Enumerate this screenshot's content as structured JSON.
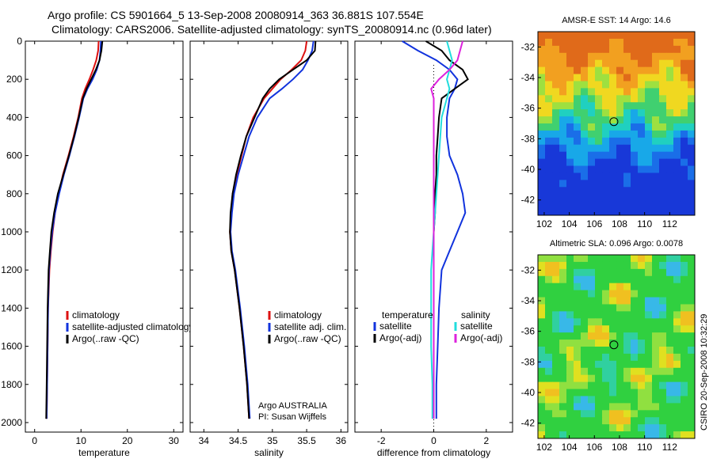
{
  "title_line1": "Argo profile: CS 5901664_5 13-Sep-2008 20080914_363 36.881S 107.554E",
  "title_line2": "Climatology: CARS2006. Satellite-adjusted climatology: synTS_20080914.nc (0.96d later)",
  "footer_vertical": "CSIRO 20-Sep-2008 10:32:29",
  "colors": {
    "climatology": "#dd1111",
    "satellite": "#1133dd",
    "argo": "#000000",
    "cyan": "#22dddd",
    "magenta": "#dd22dd"
  },
  "chart_data": [
    {
      "type": "line",
      "xlabel": "temperature",
      "xlim": [
        -2,
        32
      ],
      "ylim": [
        0,
        2050
      ],
      "xticks": [
        "0",
        "10",
        "20",
        "30"
      ],
      "yticks": [
        "0",
        "200",
        "400",
        "600",
        "800",
        "1000",
        "1200",
        "1400",
        "1600",
        "1800",
        "2000"
      ],
      "legend": [
        "climatology",
        "satellite-adjusted climatology",
        "Argo(..raw -QC)"
      ],
      "series": [
        {
          "name": "climatology",
          "color": "red",
          "x": [
            13.8,
            13.7,
            13.3,
            12.6,
            11.8,
            10.9,
            10.2,
            9.4,
            8.4,
            7.3,
            6.1,
            5.2,
            4.4,
            3.9,
            3.5,
            3.2,
            2.9,
            2.8,
            2.7,
            2.6
          ],
          "y": [
            0,
            50,
            100,
            150,
            200,
            250,
            300,
            400,
            500,
            600,
            700,
            800,
            900,
            1000,
            1100,
            1200,
            1400,
            1600,
            1800,
            1980
          ]
        },
        {
          "name": "satellite-adjusted climatology",
          "color": "blue",
          "x": [
            14.3,
            14.2,
            14.0,
            13.4,
            12.5,
            11.4,
            10.5,
            9.6,
            8.6,
            7.5,
            6.3,
            5.3,
            4.4,
            3.8,
            3.4,
            3.1,
            2.9,
            2.8,
            2.7,
            2.6
          ],
          "y": [
            0,
            50,
            100,
            150,
            200,
            250,
            300,
            400,
            500,
            600,
            700,
            800,
            900,
            1000,
            1100,
            1200,
            1400,
            1600,
            1800,
            1980
          ]
        },
        {
          "name": "Argo(..raw -QC)",
          "color": "black",
          "x": [
            14.6,
            14.4,
            14.0,
            13.2,
            12.2,
            11.2,
            10.4,
            9.5,
            8.5,
            7.4,
            6.2,
            5.0,
            4.2,
            3.6,
            3.3,
            3.0,
            2.8,
            2.7,
            2.6,
            2.5
          ],
          "y": [
            0,
            50,
            100,
            150,
            200,
            250,
            300,
            400,
            500,
            600,
            700,
            800,
            900,
            1000,
            1100,
            1200,
            1400,
            1600,
            1800,
            1980
          ]
        }
      ]
    },
    {
      "type": "line",
      "xlabel": "salinity",
      "xlim": [
        33.8,
        36.1
      ],
      "ylim": [
        0,
        2050
      ],
      "xticks": [
        "34",
        "34.5",
        "35",
        "35.5",
        "36"
      ],
      "legend": [
        "climatology",
        "satellite adj. clim.",
        "Argo(..raw -QC)"
      ],
      "annotations": [
        "Argo AUSTRALIA",
        "PI: Susan Wijffels"
      ],
      "series": [
        {
          "name": "climatology",
          "color": "red",
          "x": [
            35.5,
            35.48,
            35.42,
            35.28,
            35.12,
            35.0,
            34.88,
            34.72,
            34.62,
            34.55,
            34.48,
            34.42,
            34.4,
            34.38,
            34.4,
            34.45,
            34.52,
            34.58,
            34.63,
            34.66
          ],
          "y": [
            0,
            50,
            100,
            150,
            200,
            250,
            300,
            400,
            500,
            600,
            700,
            800,
            900,
            1000,
            1100,
            1200,
            1400,
            1600,
            1800,
            1980
          ]
        },
        {
          "name": "satellite adj. clim.",
          "color": "blue",
          "x": [
            35.6,
            35.58,
            35.52,
            35.44,
            35.3,
            35.14,
            34.96,
            34.78,
            34.66,
            34.58,
            34.5,
            34.44,
            34.41,
            34.39,
            34.41,
            34.46,
            34.53,
            34.59,
            34.64,
            34.67
          ],
          "y": [
            0,
            50,
            100,
            150,
            200,
            250,
            300,
            400,
            500,
            600,
            700,
            800,
            900,
            1000,
            1100,
            1200,
            1400,
            1600,
            1800,
            1980
          ]
        },
        {
          "name": "Argo(..raw -QC)",
          "color": "black",
          "x": [
            35.63,
            35.62,
            35.5,
            35.3,
            35.1,
            34.96,
            34.86,
            34.74,
            34.62,
            34.54,
            34.47,
            34.42,
            34.39,
            34.38,
            34.4,
            34.45,
            34.52,
            34.58,
            34.63,
            34.66
          ],
          "y": [
            0,
            50,
            100,
            150,
            200,
            250,
            300,
            400,
            500,
            600,
            700,
            800,
            900,
            1000,
            1100,
            1200,
            1400,
            1600,
            1800,
            1980
          ]
        }
      ]
    },
    {
      "type": "line",
      "xlabel": "difference from climatology",
      "xlim": [
        -3,
        3
      ],
      "ylim": [
        0,
        2050
      ],
      "xticks": [
        "-2",
        "0",
        "2"
      ],
      "legend_left_title": "temperature",
      "legend_left": [
        "satellite",
        "Argo(-adj)"
      ],
      "legend_right_title": "salinity",
      "legend_right": [
        "satellite",
        "Argo(-adj)"
      ],
      "series": [
        {
          "name": "temperature satellite",
          "color": "blue",
          "x": [
            -1.2,
            -0.6,
            0.1,
            0.6,
            0.9,
            0.8,
            0.6,
            0.5,
            0.5,
            0.6,
            0.9,
            1.1,
            1.2,
            0.9,
            0.6,
            0.3,
            0.2,
            0.15,
            0.1,
            0.1
          ],
          "y": [
            0,
            50,
            100,
            150,
            200,
            250,
            300,
            400,
            500,
            600,
            700,
            800,
            900,
            1000,
            1100,
            1200,
            1400,
            1600,
            1800,
            1980
          ]
        },
        {
          "name": "temperature Argo(-adj)",
          "color": "black",
          "x": [
            -0.3,
            0.3,
            0.6,
            1.1,
            1.3,
            0.8,
            0.3,
            0.2,
            0.15,
            0.1,
            0.1,
            0.05,
            0.05,
            0.0,
            0.0,
            0.0,
            0.0,
            0.0,
            0.0,
            0.0
          ],
          "y": [
            0,
            50,
            100,
            150,
            200,
            250,
            300,
            400,
            500,
            600,
            700,
            800,
            900,
            1000,
            1100,
            1200,
            1400,
            1600,
            1800,
            1980
          ]
        },
        {
          "name": "salinity satellite",
          "color": "cyan",
          "x": [
            0.5,
            0.6,
            0.7,
            0.6,
            0.5,
            0.6,
            0.5,
            0.3,
            0.25,
            0.2,
            0.15,
            0.1,
            0.05,
            0.0,
            -0.05,
            -0.1,
            -0.1,
            -0.1,
            -0.05,
            -0.05
          ],
          "y": [
            0,
            50,
            100,
            150,
            200,
            250,
            300,
            400,
            500,
            600,
            700,
            800,
            900,
            1000,
            1100,
            1200,
            1400,
            1600,
            1800,
            1980
          ]
        },
        {
          "name": "salinity Argo(-adj)",
          "color": "magenta",
          "x": [
            1.1,
            1.0,
            0.9,
            0.6,
            0.2,
            -0.1,
            0.0,
            0.0,
            0.0,
            0.0,
            0.0,
            0.0,
            0.0,
            0.0,
            0.0,
            0.0,
            0.0,
            0.0,
            0.0,
            0.0
          ],
          "y": [
            0,
            50,
            100,
            150,
            200,
            250,
            300,
            400,
            500,
            600,
            700,
            800,
            900,
            1000,
            1100,
            1200,
            1400,
            1600,
            1800,
            1980
          ]
        }
      ]
    },
    {
      "type": "heatmap",
      "title": "AMSR-E SST: 14 Argo: 14.6",
      "xlim": [
        101.5,
        114
      ],
      "ylim": [
        -43,
        -31
      ],
      "xticks": [
        "102",
        "104",
        "106",
        "108",
        "110",
        "112"
      ],
      "yticks": [
        "-32",
        "-34",
        "-36",
        "-38",
        "-40",
        "-42"
      ],
      "marker": {
        "lon": 107.554,
        "lat": -36.881
      }
    },
    {
      "type": "heatmap",
      "title": "Altimetric SLA: 0.096 Argo: 0.0078",
      "xlim": [
        101.5,
        114
      ],
      "ylim": [
        -43,
        -31
      ],
      "xticks": [
        "102",
        "104",
        "106",
        "108",
        "110",
        "112"
      ],
      "yticks": [
        "-32",
        "-34",
        "-36",
        "-38",
        "-40",
        "-42"
      ],
      "marker": {
        "lon": 107.554,
        "lat": -36.881
      }
    }
  ]
}
